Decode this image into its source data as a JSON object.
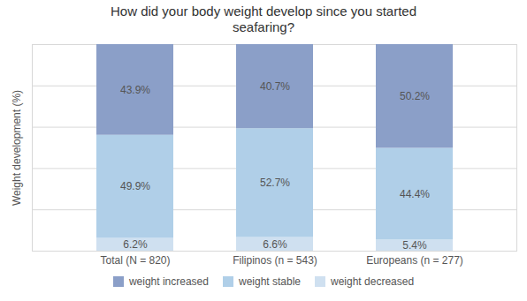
{
  "chart_data": {
    "type": "bar",
    "stacked": true,
    "title": "How did your body weight develop since you started\nseafaring?",
    "categories": [
      "Total (N = 820)",
      "Filipinos (n = 543)",
      "Europeans (n = 277)"
    ],
    "series": [
      {
        "name": "weight decreased",
        "color": "#cfe0f0",
        "values": [
          6.2,
          6.6,
          5.4
        ],
        "value_labels": [
          "6.2%",
          "6.6%",
          "5.4%"
        ]
      },
      {
        "name": "weight stable",
        "color": "#b0cfe8",
        "values": [
          49.9,
          52.7,
          44.4
        ],
        "value_labels": [
          "49.9%",
          "52.7%",
          "44.4%"
        ]
      },
      {
        "name": "weight increased",
        "color": "#8b9fc8",
        "values": [
          43.9,
          40.7,
          50.2
        ],
        "value_labels": [
          "43.9%",
          "40.7%",
          "50.2%"
        ]
      }
    ],
    "ylabel": "Weight development (%)",
    "ylim": [
      0,
      100
    ],
    "yticks": [
      20,
      40,
      60,
      80,
      100
    ],
    "grid": true,
    "tick_labels": "x",
    "data_labels": true,
    "legend": "bottom"
  }
}
